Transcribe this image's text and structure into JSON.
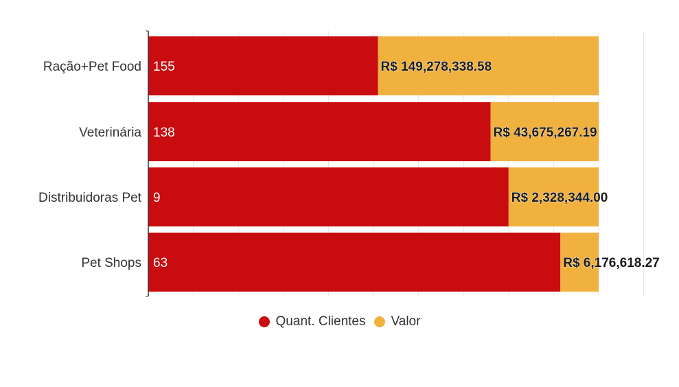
{
  "colors": {
    "count": "#c90c0f",
    "value": "#f0b13f",
    "grid": "#e6e6e6",
    "axis": "#333333"
  },
  "chart_data": {
    "type": "bar",
    "orientation": "horizontal",
    "stacked": "percent",
    "title": "",
    "xlabel": "",
    "ylabel": "",
    "categories": [
      "Ração+Pet Food",
      "Veterinária",
      "Distribuidoras Pet",
      "Pet Shops"
    ],
    "series": [
      {
        "name": "Quant. Clientes",
        "values": [
          155,
          138,
          9,
          63
        ],
        "labels": [
          "155",
          "138",
          "9",
          "63"
        ],
        "share_percent": [
          51,
          76,
          80,
          91.5
        ]
      },
      {
        "name": "Valor",
        "values": [
          149278338.58,
          43675267.19,
          2328344.0,
          6176618.27
        ],
        "labels": [
          "R$ 149,278,338.58",
          "R$ 43,675,267.19",
          "R$ 2,328,344.00",
          "R$ 6,176,618.27"
        ],
        "share_percent": [
          49,
          24,
          20,
          8.5
        ]
      }
    ],
    "xlim": [
      0,
      100
    ],
    "grid": true,
    "legend_position": "bottom-center"
  }
}
